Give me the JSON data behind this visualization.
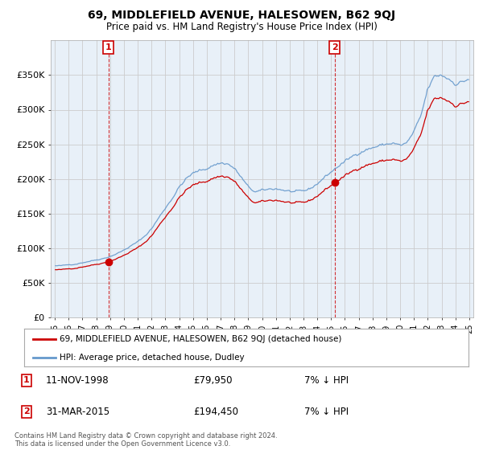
{
  "title": "69, MIDDLEFIELD AVENUE, HALESOWEN, B62 9QJ",
  "subtitle": "Price paid vs. HM Land Registry's House Price Index (HPI)",
  "legend_line1": "69, MIDDLEFIELD AVENUE, HALESOWEN, B62 9QJ (detached house)",
  "legend_line2": "HPI: Average price, detached house, Dudley",
  "annotation1_label": "1",
  "annotation1_date": "11-NOV-1998",
  "annotation1_price": "£79,950",
  "annotation1_hpi": "7% ↓ HPI",
  "annotation1_year": 1998.87,
  "annotation1_value": 79950,
  "annotation2_label": "2",
  "annotation2_date": "31-MAR-2015",
  "annotation2_price": "£194,450",
  "annotation2_hpi": "7% ↓ HPI",
  "annotation2_year": 2015.25,
  "annotation2_value": 194450,
  "footer": "Contains HM Land Registry data © Crown copyright and database right 2024.\nThis data is licensed under the Open Government Licence v3.0.",
  "price_line_color": "#cc0000",
  "hpi_line_color": "#6699cc",
  "annotation_box_color": "#cc0000",
  "chart_bg_color": "#e8f0f8",
  "ylim_min": 0,
  "ylim_max": 400000,
  "yticks": [
    0,
    50000,
    100000,
    150000,
    200000,
    250000,
    300000,
    350000
  ],
  "ytick_labels": [
    "£0",
    "£50K",
    "£100K",
    "£150K",
    "£200K",
    "£250K",
    "£300K",
    "£350K"
  ],
  "xmin": 1994.7,
  "xmax": 2025.3,
  "background_color": "#ffffff",
  "grid_color": "#cccccc"
}
